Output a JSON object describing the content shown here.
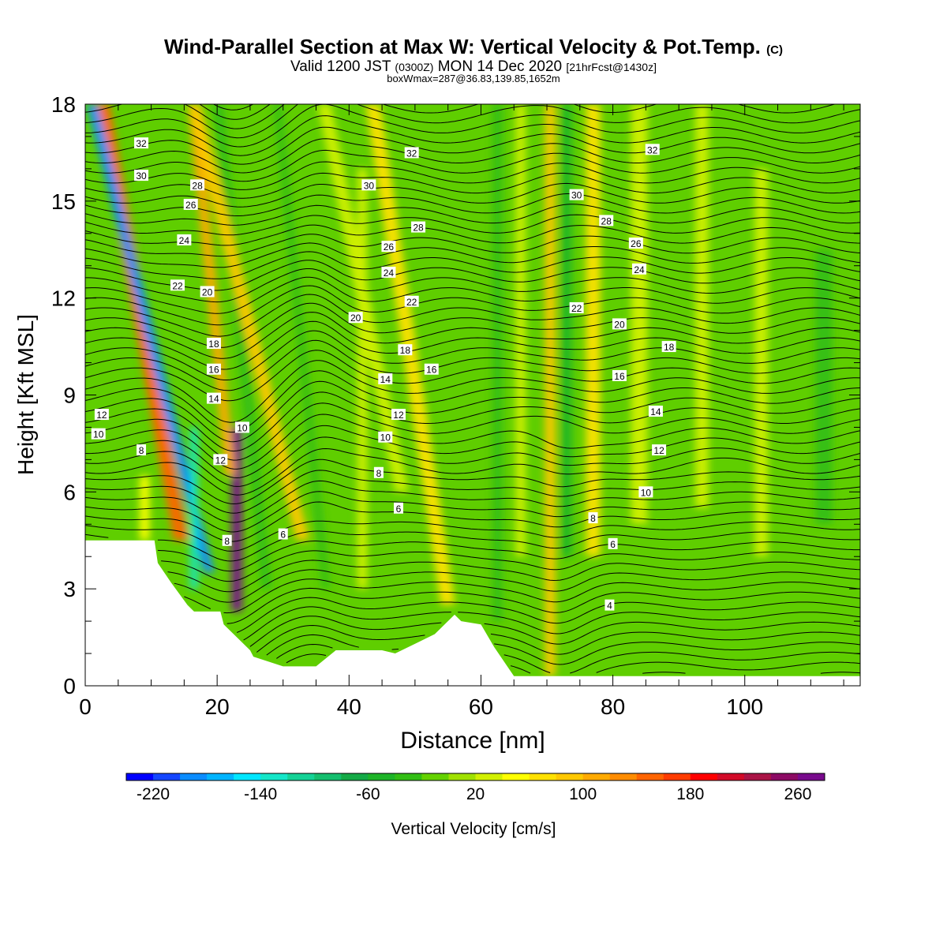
{
  "title": {
    "main": "Wind-Parallel Section at Max W: Vertical Velocity & Pot.Temp.",
    "copyright": "(C)",
    "valid_prefix": "Valid 1200 JST",
    "valid_z": "(0300Z)",
    "valid_date": "MON 14 Dec 2020",
    "valid_fcst": "[21hrFcst@1430z]",
    "boxline": "boxWmax=287@36.83,139.85,1652m"
  },
  "chart_data": {
    "type": "heatmap",
    "xlabel": "Distance [nm]",
    "ylabel": "Height [Kft MSL]",
    "xlim": [
      0,
      117.5
    ],
    "ylim": [
      0,
      18
    ],
    "xticks": [
      0,
      20,
      40,
      60,
      80,
      100
    ],
    "yticks": [
      0,
      3,
      6,
      9,
      12,
      15,
      18
    ],
    "colorbar": {
      "label": "Vertical Velocity [cm/s]",
      "ticks": [
        -220,
        -140,
        -60,
        20,
        100,
        180,
        260
      ],
      "bins_from": -240,
      "bin_width": 20,
      "colors": [
        "#0000ff",
        "#1446ff",
        "#0a8cff",
        "#00b4ff",
        "#00e6ff",
        "#14e6c8",
        "#14d296",
        "#14be6e",
        "#14aa46",
        "#1eb428",
        "#32be14",
        "#64d200",
        "#a0e100",
        "#d2f000",
        "#ffff00",
        "#ffe100",
        "#ffc800",
        "#ffaa00",
        "#ff8c00",
        "#ff6400",
        "#ff3c00",
        "#ff0000",
        "#d20a28",
        "#aa1446",
        "#8c0a64",
        "#780a8c"
      ]
    },
    "velocity_max": 287,
    "background": "#5fce00",
    "terrain": [
      [
        0,
        4.5
      ],
      [
        10.5,
        4.5
      ],
      [
        11,
        3.8
      ],
      [
        13,
        3.2
      ],
      [
        15.5,
        2.5
      ],
      [
        16.5,
        2.3
      ],
      [
        20.5,
        2.3
      ],
      [
        21,
        1.9
      ],
      [
        23,
        1.5
      ],
      [
        25,
        1.1
      ],
      [
        25.5,
        0.9
      ],
      [
        30,
        0.6
      ],
      [
        33,
        0.6
      ],
      [
        35,
        0.6
      ],
      [
        38,
        1.1
      ],
      [
        43,
        1.1
      ],
      [
        45,
        1.1
      ],
      [
        47,
        1.0
      ],
      [
        53,
        1.6
      ],
      [
        56,
        2.2
      ],
      [
        57,
        2.0
      ],
      [
        60,
        1.9
      ],
      [
        62,
        1.2
      ],
      [
        65,
        0.3
      ],
      [
        117.5,
        0.3
      ]
    ],
    "velocity_bands": [
      {
        "x": 9.0,
        "width": 1.5,
        "bottom": 4.5,
        "top": 6.5,
        "tilt": 0.0,
        "value": 40
      },
      {
        "x": 14.5,
        "width": 2.2,
        "bottom": 4.5,
        "top": 18.0,
        "tilt": 0.18,
        "value": 150
      },
      {
        "x": 18.8,
        "width": 1.6,
        "bottom": 3.5,
        "top": 18.0,
        "tilt": 0.25,
        "value": -200
      },
      {
        "x": 16.5,
        "width": 1.2,
        "bottom": 3.0,
        "top": 8.0,
        "tilt": 0.0,
        "value": -140
      },
      {
        "x": 23.0,
        "width": 1.6,
        "bottom": 2.3,
        "top": 8.0,
        "tilt": 0.0,
        "value": 260
      },
      {
        "x": 22.0,
        "width": 1.6,
        "bottom": 6.5,
        "top": 18.0,
        "tilt": 0.1,
        "value": 110
      },
      {
        "x": 27.5,
        "width": 1.6,
        "bottom": 3.0,
        "top": 18.0,
        "tilt": 0.1,
        "value": -40
      },
      {
        "x": 33.0,
        "width": 2.0,
        "bottom": 4.5,
        "top": 18.0,
        "tilt": 0.25,
        "value": 80
      },
      {
        "x": 36.5,
        "width": 1.2,
        "bottom": 3.0,
        "top": 18.0,
        "tilt": 0.1,
        "value": -40
      },
      {
        "x": 42.0,
        "width": 1.5,
        "bottom": 3.0,
        "top": 16.0,
        "tilt": 0.0,
        "value": 30
      },
      {
        "x": 48.0,
        "width": 2.0,
        "bottom": 6.0,
        "top": 18.0,
        "tilt": 0.2,
        "value": 30
      },
      {
        "x": 55.0,
        "width": 2.2,
        "bottom": 2.5,
        "top": 18.0,
        "tilt": 0.15,
        "value": 60
      },
      {
        "x": 62.5,
        "width": 1.5,
        "bottom": 2.0,
        "top": 18.0,
        "tilt": 0.0,
        "value": -30
      },
      {
        "x": 66.0,
        "width": 1.5,
        "bottom": 4.0,
        "top": 18.0,
        "tilt": 0.0,
        "value": 30
      },
      {
        "x": 70.5,
        "width": 1.6,
        "bottom": 0.3,
        "top": 18.0,
        "tilt": 0.0,
        "value": 90
      },
      {
        "x": 73.0,
        "width": 1.5,
        "bottom": 4.0,
        "top": 18.0,
        "tilt": 0.0,
        "value": -60
      },
      {
        "x": 77.0,
        "width": 2.2,
        "bottom": 4.0,
        "top": 18.0,
        "tilt": 0.0,
        "value": 60
      },
      {
        "x": 84.0,
        "width": 2.5,
        "bottom": 5.0,
        "top": 18.0,
        "tilt": 0.0,
        "value": 30
      },
      {
        "x": 93.5,
        "width": 2.0,
        "bottom": 5.5,
        "top": 18.0,
        "tilt": 0.0,
        "value": 30
      },
      {
        "x": 102.5,
        "width": 2.0,
        "bottom": 4.0,
        "top": 16.0,
        "tilt": 0.0,
        "value": 30
      },
      {
        "x": 112.0,
        "width": 2.5,
        "bottom": 5.0,
        "top": 13.5,
        "tilt": 0.0,
        "value": -30
      }
    ],
    "isentrope_levels": [
      2,
      4,
      6,
      8,
      10,
      12,
      14,
      16,
      18,
      20,
      22,
      24,
      26,
      28,
      30,
      32
    ],
    "contour_labels": [
      {
        "text": "32",
        "x": 8.5,
        "y": 16.8
      },
      {
        "text": "30",
        "x": 8.5,
        "y": 15.8
      },
      {
        "text": "28",
        "x": 17.0,
        "y": 15.5
      },
      {
        "text": "26",
        "x": 16.0,
        "y": 14.9
      },
      {
        "text": "24",
        "x": 15.0,
        "y": 13.8
      },
      {
        "text": "22",
        "x": 14.0,
        "y": 12.4
      },
      {
        "text": "20",
        "x": 18.5,
        "y": 12.2
      },
      {
        "text": "18",
        "x": 19.5,
        "y": 10.6
      },
      {
        "text": "16",
        "x": 19.5,
        "y": 9.8
      },
      {
        "text": "14",
        "x": 19.5,
        "y": 8.9
      },
      {
        "text": "12",
        "x": 2.5,
        "y": 8.4
      },
      {
        "text": "10",
        "x": 2.0,
        "y": 7.8
      },
      {
        "text": "8",
        "x": 8.5,
        "y": 7.3
      },
      {
        "text": "10",
        "x": 23.8,
        "y": 8.0
      },
      {
        "text": "12",
        "x": 20.5,
        "y": 7.0
      },
      {
        "text": "8",
        "x": 21.5,
        "y": 4.5
      },
      {
        "text": "6",
        "x": 30.0,
        "y": 4.7
      },
      {
        "text": "32",
        "x": 49.5,
        "y": 16.5
      },
      {
        "text": "30",
        "x": 43.0,
        "y": 15.5
      },
      {
        "text": "28",
        "x": 50.5,
        "y": 14.2
      },
      {
        "text": "26",
        "x": 46.0,
        "y": 13.6
      },
      {
        "text": "24",
        "x": 46.0,
        "y": 12.8
      },
      {
        "text": "22",
        "x": 49.5,
        "y": 11.9
      },
      {
        "text": "20",
        "x": 41.0,
        "y": 11.4
      },
      {
        "text": "18",
        "x": 48.5,
        "y": 10.4
      },
      {
        "text": "16",
        "x": 52.5,
        "y": 9.8
      },
      {
        "text": "14",
        "x": 45.5,
        "y": 9.5
      },
      {
        "text": "12",
        "x": 47.5,
        "y": 8.4
      },
      {
        "text": "10",
        "x": 45.5,
        "y": 7.7
      },
      {
        "text": "8",
        "x": 44.5,
        "y": 6.6
      },
      {
        "text": "6",
        "x": 47.5,
        "y": 5.5
      },
      {
        "text": "30",
        "x": 74.5,
        "y": 15.2
      },
      {
        "text": "28",
        "x": 79.0,
        "y": 14.4
      },
      {
        "text": "26",
        "x": 83.5,
        "y": 13.7
      },
      {
        "text": "24",
        "x": 84.0,
        "y": 12.9
      },
      {
        "text": "32",
        "x": 86.0,
        "y": 16.6
      },
      {
        "text": "22",
        "x": 74.5,
        "y": 11.7
      },
      {
        "text": "20",
        "x": 81.0,
        "y": 11.2
      },
      {
        "text": "18",
        "x": 88.5,
        "y": 10.5
      },
      {
        "text": "16",
        "x": 81.0,
        "y": 9.6
      },
      {
        "text": "14",
        "x": 86.5,
        "y": 8.5
      },
      {
        "text": "12",
        "x": 87.0,
        "y": 7.3
      },
      {
        "text": "10",
        "x": 85.0,
        "y": 6.0
      },
      {
        "text": "8",
        "x": 77.0,
        "y": 5.2
      },
      {
        "text": "6",
        "x": 80.0,
        "y": 4.4
      },
      {
        "text": "4",
        "x": 79.5,
        "y": 2.5
      }
    ]
  }
}
